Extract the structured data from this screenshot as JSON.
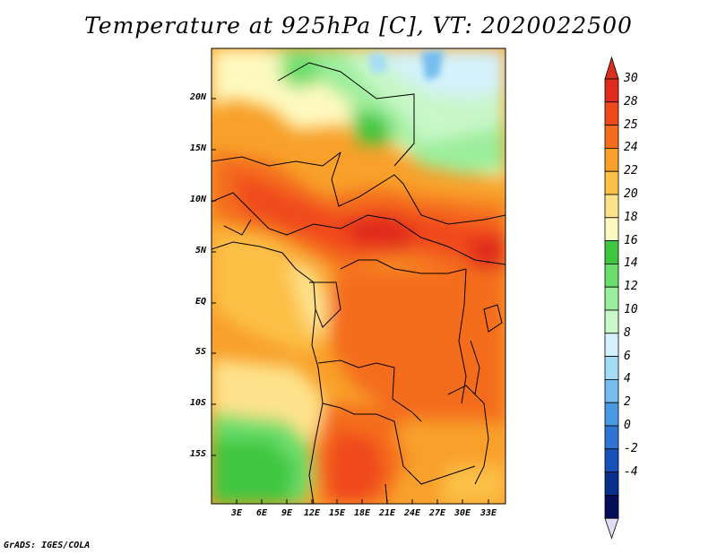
{
  "title": "Temperature at 925hPa [C], VT: 2020022500",
  "credit": "GrADS: IGES/COLA",
  "map": {
    "lat_labels": [
      "20N",
      "15N",
      "10N",
      "5N",
      "EQ",
      "5S",
      "10S",
      "15S"
    ],
    "lon_labels": [
      "3E",
      "6E",
      "9E",
      "12E",
      "15E",
      "18E",
      "21E",
      "24E",
      "27E",
      "30E",
      "33E"
    ]
  },
  "colorbar": {
    "labels": [
      "30",
      "28",
      "25",
      "24",
      "22",
      "20",
      "18",
      "16",
      "14",
      "12",
      "10",
      "8",
      "6",
      "4",
      "2",
      "0",
      "-2",
      "-4"
    ],
    "colors": [
      "#e02a1b",
      "#f0491c",
      "#f46d1f",
      "#f8a02a",
      "#fcc047",
      "#fee28b",
      "#fef9c0",
      "#3fc63f",
      "#6bdd6b",
      "#9bee9b",
      "#c8f7c8",
      "#d4f2fb",
      "#a5dcf5",
      "#74bdee",
      "#4a9ae3",
      "#2d74d3",
      "#1652b8",
      "#0a2e8c",
      "#040d5a"
    ],
    "top_arrow_color": "#d7301f",
    "bottom_arrow_color": "#e2ddf5"
  }
}
